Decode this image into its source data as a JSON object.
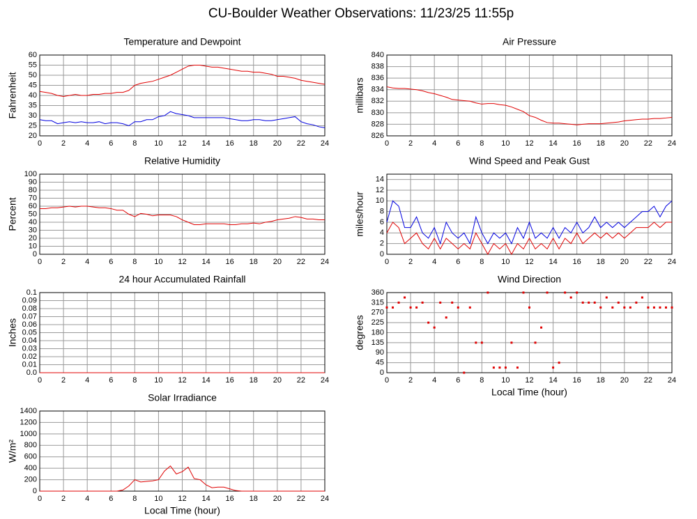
{
  "title": "CU-Boulder Weather Observations: 11/23/25 11:55p",
  "chart_data": [
    {
      "type": "line",
      "title": "Temperature and Dewpoint",
      "ylabel": "Fahrenheit",
      "x": [
        0,
        0.5,
        1,
        1.5,
        2,
        2.5,
        3,
        3.5,
        4,
        4.5,
        5,
        5.5,
        6,
        6.5,
        7,
        7.5,
        8,
        8.5,
        9,
        9.5,
        10,
        10.5,
        11,
        11.5,
        12,
        12.5,
        13,
        13.5,
        14,
        14.5,
        15,
        15.5,
        16,
        16.5,
        17,
        17.5,
        18,
        18.5,
        19,
        19.5,
        20,
        20.5,
        21,
        21.5,
        22,
        22.5,
        23,
        23.5,
        24
      ],
      "series": [
        {
          "color": "#e00000",
          "values": [
            42,
            41.5,
            41,
            40,
            39.5,
            40,
            40.5,
            40,
            40,
            40.5,
            40.5,
            41,
            41,
            41.5,
            41.5,
            42.5,
            45,
            46,
            46.5,
            47,
            48,
            49,
            50,
            51.5,
            53,
            54.5,
            55,
            55,
            54.5,
            54,
            54,
            53.5,
            53,
            52.5,
            52,
            52,
            51.5,
            51.5,
            51,
            50.5,
            49.5,
            49.5,
            49,
            48.5,
            47.5,
            47,
            46.5,
            46,
            45.5
          ]
        },
        {
          "color": "#0000e0",
          "values": [
            28,
            27.5,
            27.5,
            26,
            26.5,
            27,
            26.5,
            27,
            26.5,
            26.5,
            27,
            26,
            26.5,
            26.5,
            26,
            25,
            27,
            27,
            28,
            28,
            29.5,
            30,
            32,
            31,
            30.5,
            30,
            29,
            29,
            29,
            29,
            29,
            29,
            28.5,
            28,
            27.5,
            27.5,
            28,
            28,
            27.5,
            27.5,
            28,
            28.5,
            29,
            29.5,
            27,
            26,
            25.5,
            24.5,
            24
          ]
        }
      ],
      "xlim": [
        0,
        24
      ],
      "xticks": [
        0,
        2,
        4,
        6,
        8,
        10,
        12,
        14,
        16,
        18,
        20,
        22,
        24
      ],
      "ylim": [
        20,
        60
      ],
      "yticks": [
        20,
        25,
        30,
        35,
        40,
        45,
        50,
        55,
        60
      ],
      "grid": true
    },
    {
      "type": "line",
      "title": "Air Pressure",
      "ylabel": "millibars",
      "x": [
        0,
        0.5,
        1,
        1.5,
        2,
        2.5,
        3,
        3.5,
        4,
        4.5,
        5,
        5.5,
        6,
        6.5,
        7,
        7.5,
        8,
        8.5,
        9,
        9.5,
        10,
        10.5,
        11,
        11.5,
        12,
        12.5,
        13,
        13.5,
        14,
        14.5,
        15,
        15.5,
        16,
        16.5,
        17,
        17.5,
        18,
        18.5,
        19,
        19.5,
        20,
        20.5,
        21,
        21.5,
        22,
        22.5,
        23,
        23.5,
        24
      ],
      "series": [
        {
          "color": "#e00000",
          "values": [
            834.5,
            834.3,
            834.2,
            834.2,
            834.1,
            834,
            833.8,
            833.5,
            833.3,
            833,
            832.7,
            832.3,
            832.2,
            832.1,
            832,
            831.7,
            831.5,
            831.6,
            831.6,
            831.4,
            831.3,
            831,
            830.6,
            830.2,
            829.5,
            829.2,
            828.7,
            828.3,
            828.2,
            828.2,
            828.1,
            828,
            827.9,
            828,
            828.1,
            828.1,
            828.1,
            828.2,
            828.3,
            828.4,
            828.6,
            828.7,
            828.8,
            828.9,
            828.9,
            829,
            829,
            829.1,
            829.2
          ]
        }
      ],
      "xlim": [
        0,
        24
      ],
      "xticks": [
        0,
        2,
        4,
        6,
        8,
        10,
        12,
        14,
        16,
        18,
        20,
        22,
        24
      ],
      "ylim": [
        826,
        840
      ],
      "yticks": [
        826,
        828,
        830,
        832,
        834,
        836,
        838,
        840
      ],
      "grid": true
    },
    {
      "type": "line",
      "title": "Relative Humidity",
      "ylabel": "Percent",
      "x": [
        0,
        0.5,
        1,
        1.5,
        2,
        2.5,
        3,
        3.5,
        4,
        4.5,
        5,
        5.5,
        6,
        6.5,
        7,
        7.5,
        8,
        8.5,
        9,
        9.5,
        10,
        10.5,
        11,
        11.5,
        12,
        12.5,
        13,
        13.5,
        14,
        14.5,
        15,
        15.5,
        16,
        16.5,
        17,
        17.5,
        18,
        18.5,
        19,
        19.5,
        20,
        20.5,
        21,
        21.5,
        22,
        22.5,
        23,
        23.5,
        24
      ],
      "series": [
        {
          "color": "#e00000",
          "values": [
            57,
            57,
            58,
            58,
            59,
            60,
            59,
            60,
            60,
            59,
            58,
            58,
            57,
            55,
            55,
            50,
            47,
            51,
            50,
            48,
            49,
            49,
            49,
            47,
            43,
            40,
            37,
            37,
            38,
            38,
            38,
            38,
            37,
            37,
            38,
            38,
            39,
            38,
            40,
            41,
            43,
            44,
            45,
            47,
            46,
            44,
            44,
            43,
            43
          ]
        }
      ],
      "xlim": [
        0,
        24
      ],
      "xticks": [
        0,
        2,
        4,
        6,
        8,
        10,
        12,
        14,
        16,
        18,
        20,
        22,
        24
      ],
      "ylim": [
        0,
        100
      ],
      "yticks": [
        0,
        10,
        20,
        30,
        40,
        50,
        60,
        70,
        80,
        90,
        100
      ],
      "grid": true
    },
    {
      "type": "line",
      "title": "Wind Speed and Peak Gust",
      "ylabel": "miles/hour",
      "x": [
        0,
        0.5,
        1,
        1.5,
        2,
        2.5,
        3,
        3.5,
        4,
        4.5,
        5,
        5.5,
        6,
        6.5,
        7,
        7.5,
        8,
        8.5,
        9,
        9.5,
        10,
        10.5,
        11,
        11.5,
        12,
        12.5,
        13,
        13.5,
        14,
        14.5,
        15,
        15.5,
        16,
        16.5,
        17,
        17.5,
        18,
        18.5,
        19,
        19.5,
        20,
        20.5,
        21,
        21.5,
        22,
        22.5,
        23,
        23.5,
        24
      ],
      "series": [
        {
          "color": "#0000e0",
          "values": [
            6,
            10,
            9,
            5,
            5,
            7,
            4,
            3,
            5,
            2,
            6,
            4,
            3,
            4,
            2,
            7,
            4,
            2,
            4,
            3,
            4,
            2,
            5,
            3,
            6,
            3,
            4,
            3,
            5,
            3,
            5,
            4,
            6,
            4,
            5,
            7,
            5,
            6,
            5,
            6,
            5,
            6,
            7,
            8,
            8,
            9,
            7,
            9,
            10
          ]
        },
        {
          "color": "#e00000",
          "values": [
            4,
            6,
            5,
            2,
            3,
            4,
            2,
            1,
            3,
            1,
            3,
            2,
            1,
            2,
            1,
            4,
            2,
            0,
            2,
            1,
            2,
            0,
            2,
            1,
            3,
            1,
            2,
            1,
            3,
            1,
            3,
            2,
            4,
            2,
            3,
            4,
            3,
            4,
            3,
            4,
            3,
            4,
            5,
            5,
            5,
            6,
            5,
            6,
            6
          ]
        }
      ],
      "xlim": [
        0,
        24
      ],
      "xticks": [
        0,
        2,
        4,
        6,
        8,
        10,
        12,
        14,
        16,
        18,
        20,
        22,
        24
      ],
      "ylim": [
        0,
        15
      ],
      "yticks": [
        0,
        2,
        4,
        6,
        8,
        10,
        12,
        14
      ],
      "grid": true
    },
    {
      "type": "line",
      "title": "24 hour Accumulated Rainfall",
      "ylabel": "Inches",
      "x": [
        0,
        24
      ],
      "series": [
        {
          "color": "#e00000",
          "values": [
            0,
            0
          ]
        }
      ],
      "xlim": [
        0,
        24
      ],
      "xticks": [
        0,
        2,
        4,
        6,
        8,
        10,
        12,
        14,
        16,
        18,
        20,
        22,
        24
      ],
      "ylim": [
        0,
        0.1
      ],
      "yticks": [
        {
          "value": 0,
          "label": "0.0"
        },
        0.01,
        0.02,
        0.03,
        0.04,
        0.05,
        0.06,
        0.07,
        0.08,
        0.09,
        {
          "value": 0.1,
          "label": "0.1"
        }
      ],
      "grid": true
    },
    {
      "type": "scatter",
      "title": "Wind Direction",
      "ylabel": "degrees",
      "xlabel": "Local Time (hour)",
      "x": [
        0,
        0.5,
        1,
        1.5,
        2,
        2.5,
        3,
        3.5,
        4,
        4.5,
        5,
        5.5,
        6,
        6.5,
        7,
        7.5,
        8,
        8.5,
        9,
        9.5,
        10,
        10.5,
        11,
        11.5,
        12,
        12.5,
        13,
        13.5,
        14,
        14.5,
        15,
        15.5,
        16,
        16.5,
        17,
        17.5,
        18,
        18.5,
        19,
        19.5,
        20,
        20.5,
        21,
        21.5,
        22,
        22.5,
        23,
        23.5,
        24
      ],
      "series": [
        {
          "color": "#e00000",
          "values": [
            293,
            293,
            315,
            338,
            293,
            293,
            315,
            225,
            203,
            315,
            248,
            315,
            293,
            0,
            293,
            135,
            135,
            360,
            23,
            23,
            23,
            135,
            23,
            360,
            293,
            135,
            203,
            360,
            23,
            45,
            360,
            338,
            360,
            315,
            315,
            315,
            293,
            338,
            293,
            315,
            293,
            293,
            315,
            338,
            293,
            293,
            293,
            293,
            293
          ]
        }
      ],
      "xlim": [
        0,
        24
      ],
      "xticks": [
        0,
        2,
        4,
        6,
        8,
        10,
        12,
        14,
        16,
        18,
        20,
        22,
        24
      ],
      "ylim": [
        0,
        360
      ],
      "yticks": [
        0,
        45,
        90,
        135,
        180,
        225,
        270,
        315,
        360
      ],
      "grid": true
    },
    {
      "type": "line",
      "title": "Solar Irradiance",
      "ylabel": "W/m²",
      "xlabel": "Local Time (hour)",
      "x": [
        0,
        0.5,
        1,
        1.5,
        2,
        2.5,
        3,
        3.5,
        4,
        4.5,
        5,
        5.5,
        6,
        6.5,
        7,
        7.5,
        8,
        8.5,
        9,
        9.5,
        10,
        10.5,
        11,
        11.5,
        12,
        12.5,
        13,
        13.5,
        14,
        14.5,
        15,
        15.5,
        16,
        16.5,
        17,
        17.5,
        18,
        18.5,
        19,
        19.5,
        20,
        20.5,
        21,
        21.5,
        22,
        22.5,
        23,
        23.5,
        24
      ],
      "series": [
        {
          "color": "#e00000",
          "values": [
            0,
            0,
            0,
            0,
            0,
            0,
            0,
            0,
            0,
            0,
            0,
            0,
            0,
            0,
            20,
            90,
            200,
            160,
            170,
            180,
            200,
            350,
            440,
            300,
            340,
            420,
            220,
            200,
            110,
            60,
            70,
            70,
            40,
            10,
            0,
            0,
            0,
            0,
            0,
            0,
            0,
            0,
            0,
            0,
            0,
            0,
            0,
            0,
            0
          ]
        }
      ],
      "xlim": [
        0,
        24
      ],
      "xticks": [
        0,
        2,
        4,
        6,
        8,
        10,
        12,
        14,
        16,
        18,
        20,
        22,
        24
      ],
      "ylim": [
        0,
        1400
      ],
      "yticks": [
        0,
        200,
        400,
        600,
        800,
        1000,
        1200,
        1400
      ],
      "grid": true
    }
  ]
}
